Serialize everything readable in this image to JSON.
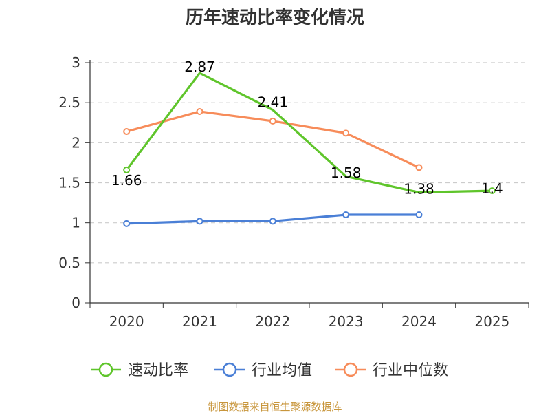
{
  "chart_data": {
    "type": "line",
    "title": "历年速动比率变化情况",
    "categories": [
      "2020",
      "2021",
      "2022",
      "2023",
      "2024",
      "2025"
    ],
    "ylim": [
      0,
      3
    ],
    "yticks": [
      "0",
      "0.5",
      "1",
      "1.5",
      "2",
      "2.5",
      "3"
    ],
    "grid": true,
    "legend_position": "bottom",
    "series": [
      {
        "name": "速动比率",
        "color": "#5fc52b",
        "values": [
          1.66,
          2.87,
          2.41,
          1.58,
          1.38,
          1.4
        ],
        "data_labels": [
          "1.66",
          "2.87",
          "2.41",
          "1.58",
          "1.38",
          "1.4"
        ],
        "markers_on": [
          0,
          5
        ]
      },
      {
        "name": "行业均值",
        "color": "#4a7fd6",
        "values": [
          0.99,
          1.02,
          1.02,
          1.1,
          1.1,
          null
        ]
      },
      {
        "name": "行业中位数",
        "color": "#f78c5a",
        "values": [
          2.14,
          2.39,
          2.27,
          2.12,
          1.69,
          null
        ]
      }
    ]
  },
  "source": "制图数据来自恒生聚源数据库"
}
